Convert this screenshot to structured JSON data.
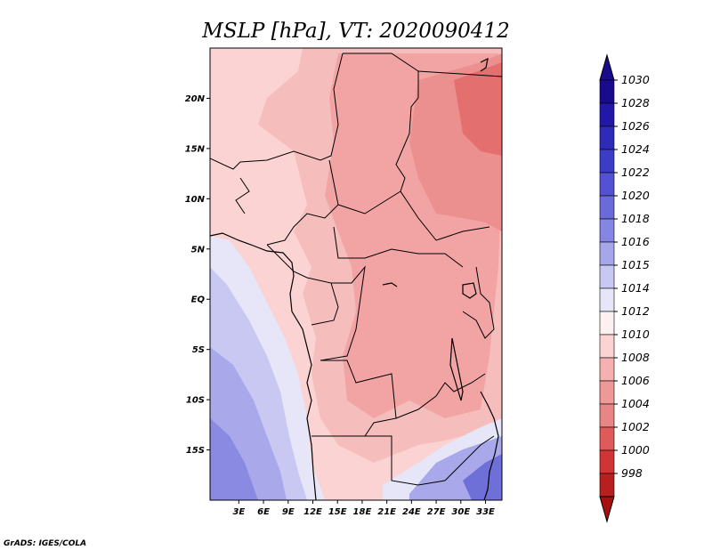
{
  "title": "MSLP [hPa], VT: 2020090412",
  "credit": "GrADS: IGES/COLA",
  "chart_data": {
    "type": "heatmap",
    "variable": "MSLP",
    "units": "hPa",
    "valid_time": "2020090412",
    "x_range_deg": [
      -0.5,
      35
    ],
    "y_range_deg": [
      -20,
      25
    ],
    "x_ticks": [
      {
        "value": 3,
        "label": "3E"
      },
      {
        "value": 6,
        "label": "6E"
      },
      {
        "value": 9,
        "label": "9E"
      },
      {
        "value": 12,
        "label": "12E"
      },
      {
        "value": 15,
        "label": "15E"
      },
      {
        "value": 18,
        "label": "18E"
      },
      {
        "value": 21,
        "label": "21E"
      },
      {
        "value": 24,
        "label": "24E"
      },
      {
        "value": 27,
        "label": "27E"
      },
      {
        "value": 30,
        "label": "30E"
      },
      {
        "value": 33,
        "label": "33E"
      }
    ],
    "y_ticks": [
      {
        "value": 20,
        "label": "20N"
      },
      {
        "value": 15,
        "label": "15N"
      },
      {
        "value": 10,
        "label": "10N"
      },
      {
        "value": 5,
        "label": "5N"
      },
      {
        "value": 0,
        "label": "EQ"
      },
      {
        "value": -5,
        "label": "5S"
      },
      {
        "value": -10,
        "label": "10S"
      },
      {
        "value": -15,
        "label": "15S"
      }
    ],
    "colorbar": [
      {
        "label": "1030",
        "color": "#1a0a8c"
      },
      {
        "label": "1028",
        "color": "#2218a8"
      },
      {
        "label": "1026",
        "color": "#2d2bb8"
      },
      {
        "label": "1024",
        "color": "#3c3dc7"
      },
      {
        "label": "1022",
        "color": "#5252d3"
      },
      {
        "label": "1020",
        "color": "#6a6ad9"
      },
      {
        "label": "1018",
        "color": "#8585e3"
      },
      {
        "label": "1016",
        "color": "#a6a6ea"
      },
      {
        "label": "1015",
        "color": "#c8c8f2"
      },
      {
        "label": "1014",
        "color": "#e6e6f8"
      },
      {
        "label": "1012",
        "color": "#fdf0f0"
      },
      {
        "label": "1010",
        "color": "#fbd3d3"
      },
      {
        "label": "1008",
        "color": "#f5b0b0"
      },
      {
        "label": "1006",
        "color": "#ef9898"
      },
      {
        "label": "1004",
        "color": "#e88585"
      },
      {
        "label": "1002",
        "color": "#e05a5a"
      },
      {
        "label": "1000",
        "color": "#d03434"
      },
      {
        "label": "998",
        "color": "#b82020"
      }
    ],
    "colorbar_top_color": "#1a0a8c",
    "colorbar_bottom_color": "#a81010"
  }
}
